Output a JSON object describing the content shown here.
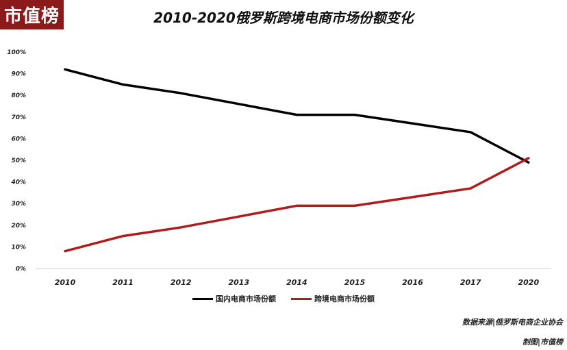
{
  "logo_text": "市值榜",
  "footer": {
    "source": "数据来源|俄罗斯电商企业协会",
    "credit": "制图|市值榜"
  },
  "chart_data": {
    "type": "line",
    "title": "2010-2020俄罗斯跨境电商市场份额变化",
    "categories": [
      "2010",
      "2011",
      "2012",
      "2013",
      "2014",
      "2015",
      "2016",
      "2017",
      "2020"
    ],
    "series": [
      {
        "name": "国内电商市场份额",
        "color": "#000000",
        "values": [
          92,
          85,
          81,
          76,
          71,
          71,
          67,
          63,
          49
        ]
      },
      {
        "name": "跨境电商市场份额",
        "color": "#b01c1c",
        "values": [
          8,
          15,
          19,
          24,
          29,
          29,
          33,
          37,
          51
        ]
      }
    ],
    "ylim": [
      0,
      100
    ],
    "y_ticks": [
      "0%",
      "10%",
      "20%",
      "30%",
      "40%",
      "50%",
      "60%",
      "70%",
      "80%",
      "90%",
      "100%"
    ],
    "legend": "bottom",
    "grid": false
  }
}
